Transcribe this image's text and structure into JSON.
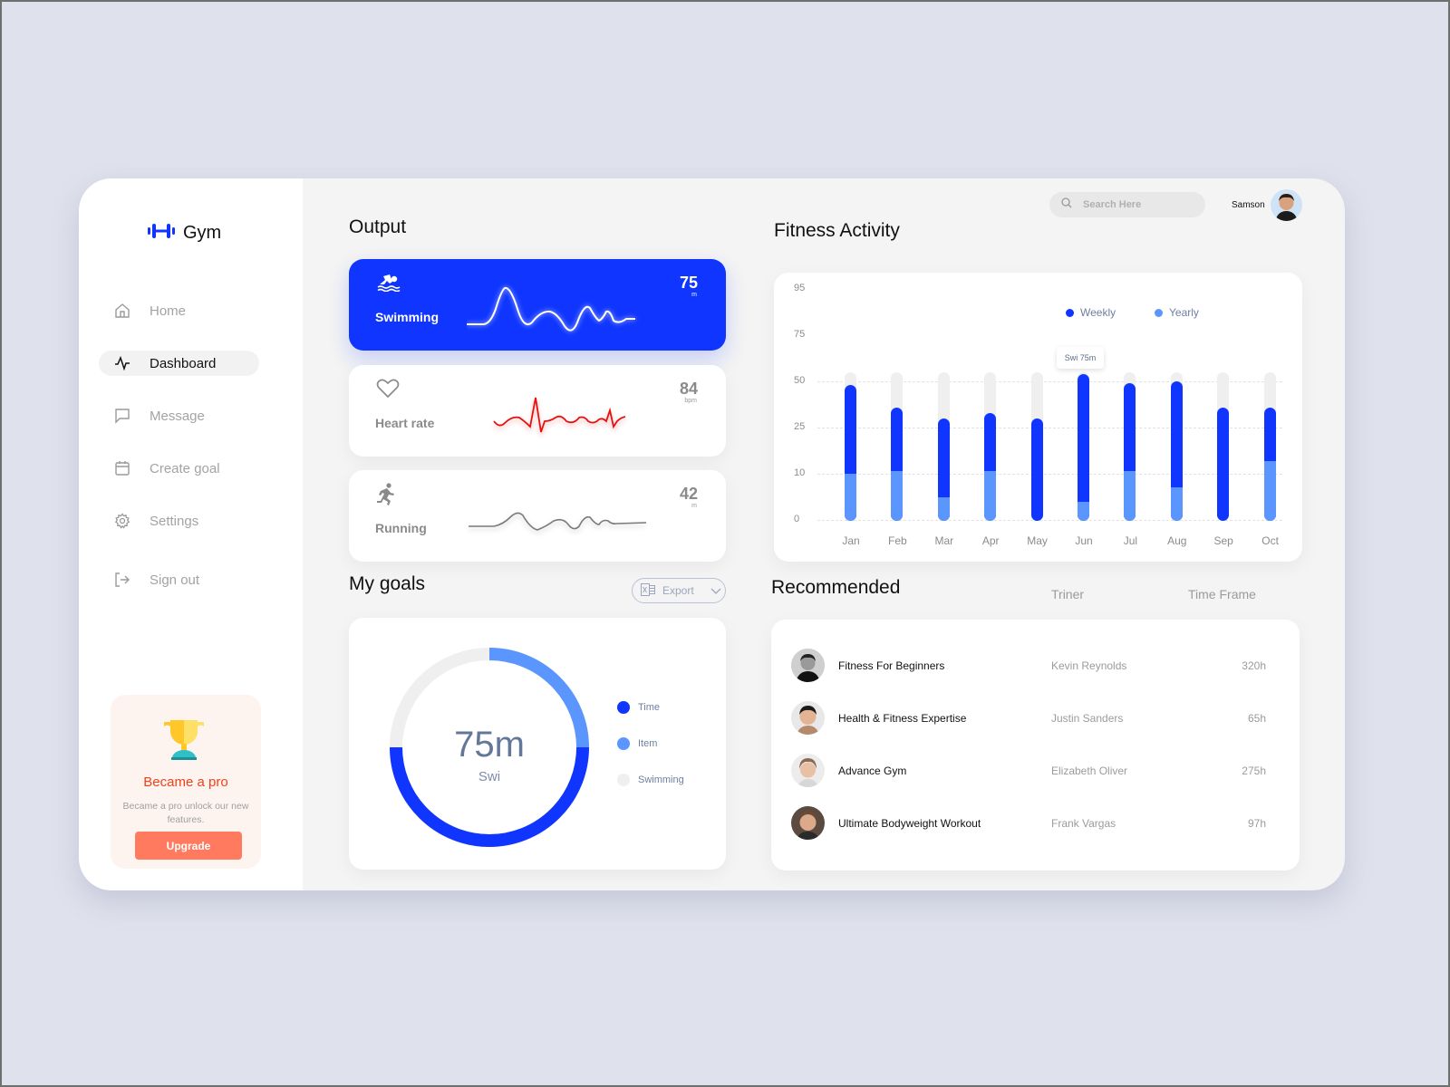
{
  "brand": {
    "name": "Gym",
    "accent": "#0f35ff"
  },
  "sidebar": {
    "items": [
      {
        "label": "Home",
        "icon": "home-icon",
        "active": false
      },
      {
        "label": "Dashboard",
        "icon": "activity-icon",
        "active": true
      },
      {
        "label": "Message",
        "icon": "message-icon",
        "active": false
      },
      {
        "label": "Create goal",
        "icon": "calendar-icon",
        "active": false
      },
      {
        "label": "Settings",
        "icon": "gear-icon",
        "active": false
      },
      {
        "label": "Sign out",
        "icon": "sign-out-icon",
        "active": false
      }
    ],
    "promo": {
      "title": "Became a pro",
      "description": "Became a pro unlock our new features.",
      "button": "Upgrade",
      "icon": "trophy-icon"
    }
  },
  "header": {
    "search_placeholder": "Search Here",
    "user_name": "Samson"
  },
  "output": {
    "title": "Output",
    "cards": [
      {
        "name": "Swimming",
        "value": "75",
        "unit": "m",
        "icon": "swimming-icon",
        "active": true
      },
      {
        "name": "Heart rate",
        "value": "84",
        "unit": "bpm",
        "icon": "heart-icon",
        "active": false
      },
      {
        "name": "Running",
        "value": "42",
        "unit": "m",
        "icon": "running-icon",
        "active": false
      }
    ]
  },
  "goals": {
    "title": "My goals",
    "export_label": "Export",
    "center_value": "75m",
    "center_label": "Swi",
    "legend": [
      {
        "label": "Time",
        "color": "#0f35ff",
        "percent": 50
      },
      {
        "label": "Item",
        "color": "#5b96ff",
        "percent": 25
      },
      {
        "label": "Swimming",
        "color": "#efefef",
        "percent": 25
      }
    ]
  },
  "fitness": {
    "title": "Fitness Activity",
    "tooltip": "Swi 75m"
  },
  "recommended": {
    "title": "Recommended",
    "columns": {
      "trainer": "Triner",
      "time": "Time Frame"
    },
    "rows": [
      {
        "course": "Fitness For Beginners",
        "trainer": "Kevin Reynolds",
        "time": "320h"
      },
      {
        "course": "Health & Fitness Expertise",
        "trainer": "Justin Sanders",
        "time": "65h"
      },
      {
        "course": "Advance Gym",
        "trainer": "Elizabeth Oliver",
        "time": "275h"
      },
      {
        "course": "Ultimate Bodyweight Workout",
        "trainer": "Frank Vargas",
        "time": "97h"
      }
    ]
  },
  "chart_data": [
    {
      "type": "bar",
      "title": "Fitness Activity",
      "categories": [
        "Jan",
        "Feb",
        "Mar",
        "Apr",
        "May",
        "Jun",
        "Jul",
        "Aug",
        "Sep",
        "Oct"
      ],
      "yticks": [
        "0",
        "10",
        "25",
        "50",
        "75",
        "95"
      ],
      "series": [
        {
          "name": "Weekly",
          "color": "#0f35ff",
          "values": [
            48,
            36,
            30,
            33,
            30,
            54,
            49,
            50,
            36,
            36
          ]
        },
        {
          "name": "Yearly",
          "color": "#5b96ff",
          "values": [
            10,
            11,
            5,
            11,
            0,
            4,
            11,
            7,
            0,
            14
          ]
        }
      ],
      "track_max": 55,
      "legend_position": "top-right",
      "grid": true,
      "annotation": {
        "category": "Jun",
        "text": "Swi 75m"
      },
      "xlabel": "",
      "ylabel": ""
    },
    {
      "type": "pie",
      "title": "My goals",
      "categories": [
        "Time",
        "Item",
        "Swimming"
      ],
      "values": [
        50,
        25,
        25
      ],
      "center_text": "75m Swi"
    }
  ]
}
